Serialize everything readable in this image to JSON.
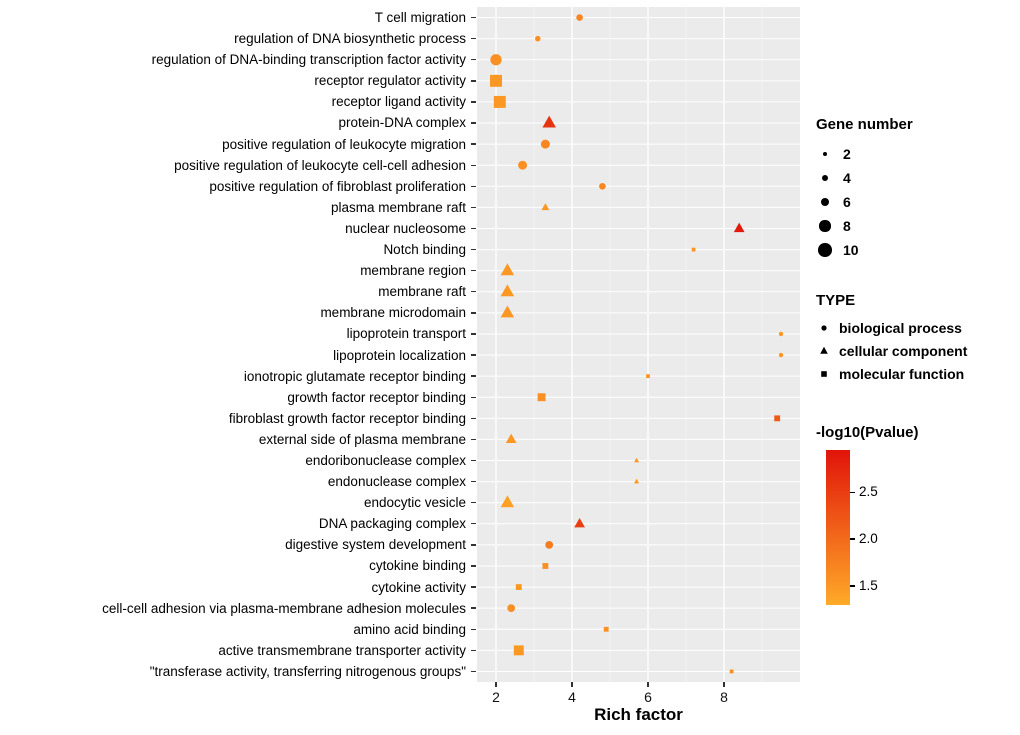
{
  "figure": {
    "x_axis_title": "Rich factor",
    "panel_background": "#EBEBEB",
    "gridline_color": "#FFFFFF",
    "legend_gene_number": {
      "title": "Gene number",
      "sizes": [
        2,
        4,
        6,
        8,
        10
      ]
    },
    "legend_type": {
      "title": "TYPE",
      "entries": [
        {
          "label": "biological process",
          "shape": "circle"
        },
        {
          "label": "cellular component",
          "shape": "triangle"
        },
        {
          "label": "molecular function",
          "shape": "square"
        }
      ]
    },
    "legend_colorbar": {
      "title": "-log10(Pvalue)",
      "ticks": [
        "2.5",
        "2.0",
        "1.5"
      ],
      "tick_values": [
        2.5,
        2.0,
        1.5
      ],
      "low_color": "#FFAA28",
      "high_color": "#E1140A",
      "domain": [
        1.3,
        2.95
      ]
    }
  },
  "chart_data": {
    "type": "scatter",
    "title": "",
    "xlabel": "Rich factor",
    "ylabel": "",
    "xlim": [
      1.5,
      10
    ],
    "x_ticks": [
      2,
      4,
      6,
      8
    ],
    "x_minor_ticks": [
      3,
      5,
      7,
      9
    ],
    "size_field": "gene_number",
    "shape_field": "type",
    "color_field": "neg_log10_pvalue",
    "points": [
      {
        "category": "T cell migration",
        "rich_factor": 4.2,
        "gene_number": 4,
        "type": "biological process",
        "neg_log10_pvalue": 1.7
      },
      {
        "category": "regulation of DNA biosynthetic process",
        "rich_factor": 3.1,
        "gene_number": 3,
        "type": "biological process",
        "neg_log10_pvalue": 1.6
      },
      {
        "category": "regulation of DNA-binding transcription factor activity",
        "rich_factor": 2.0,
        "gene_number": 8,
        "type": "biological process",
        "neg_log10_pvalue": 1.6
      },
      {
        "category": "receptor regulator activity",
        "rich_factor": 2.0,
        "gene_number": 10,
        "type": "molecular function",
        "neg_log10_pvalue": 1.5
      },
      {
        "category": "receptor ligand activity",
        "rich_factor": 2.1,
        "gene_number": 10,
        "type": "molecular function",
        "neg_log10_pvalue": 1.5
      },
      {
        "category": "protein-DNA complex",
        "rich_factor": 3.4,
        "gene_number": 8,
        "type": "cellular component",
        "neg_log10_pvalue": 2.6
      },
      {
        "category": "positive regulation of leukocyte migration",
        "rich_factor": 3.3,
        "gene_number": 6,
        "type": "biological process",
        "neg_log10_pvalue": 1.7
      },
      {
        "category": "positive regulation of leukocyte cell-cell adhesion",
        "rich_factor": 2.7,
        "gene_number": 6,
        "type": "biological process",
        "neg_log10_pvalue": 1.6
      },
      {
        "category": "positive regulation of fibroblast proliferation",
        "rich_factor": 4.8,
        "gene_number": 4,
        "type": "biological process",
        "neg_log10_pvalue": 1.7
      },
      {
        "category": "plasma membrane raft",
        "rich_factor": 3.3,
        "gene_number": 4,
        "type": "cellular component",
        "neg_log10_pvalue": 1.5
      },
      {
        "category": "nuclear nucleosome",
        "rich_factor": 8.4,
        "gene_number": 6,
        "type": "cellular component",
        "neg_log10_pvalue": 2.9
      },
      {
        "category": "Notch binding",
        "rich_factor": 7.2,
        "gene_number": 2,
        "type": "molecular function",
        "neg_log10_pvalue": 1.5
      },
      {
        "category": "membrane region",
        "rich_factor": 2.3,
        "gene_number": 8,
        "type": "cellular component",
        "neg_log10_pvalue": 1.5
      },
      {
        "category": "membrane raft",
        "rich_factor": 2.3,
        "gene_number": 8,
        "type": "cellular component",
        "neg_log10_pvalue": 1.5
      },
      {
        "category": "membrane microdomain",
        "rich_factor": 2.3,
        "gene_number": 8,
        "type": "cellular component",
        "neg_log10_pvalue": 1.5
      },
      {
        "category": "lipoprotein transport",
        "rich_factor": 9.5,
        "gene_number": 2,
        "type": "biological process",
        "neg_log10_pvalue": 1.5
      },
      {
        "category": "lipoprotein localization",
        "rich_factor": 9.5,
        "gene_number": 2,
        "type": "biological process",
        "neg_log10_pvalue": 1.5
      },
      {
        "category": "ionotropic glutamate receptor binding",
        "rich_factor": 6.0,
        "gene_number": 2,
        "type": "molecular function",
        "neg_log10_pvalue": 1.5
      },
      {
        "category": "growth factor receptor binding",
        "rich_factor": 3.2,
        "gene_number": 6,
        "type": "molecular function",
        "neg_log10_pvalue": 1.6
      },
      {
        "category": "fibroblast growth factor receptor binding",
        "rich_factor": 9.4,
        "gene_number": 4,
        "type": "molecular function",
        "neg_log10_pvalue": 2.2
      },
      {
        "category": "external side of plasma membrane",
        "rich_factor": 2.4,
        "gene_number": 6,
        "type": "cellular component",
        "neg_log10_pvalue": 1.5
      },
      {
        "category": "endoribonuclease complex",
        "rich_factor": 5.7,
        "gene_number": 2,
        "type": "cellular component",
        "neg_log10_pvalue": 1.5
      },
      {
        "category": "endonuclease complex",
        "rich_factor": 5.7,
        "gene_number": 2,
        "type": "cellular component",
        "neg_log10_pvalue": 1.5
      },
      {
        "category": "endocytic vesicle",
        "rich_factor": 2.3,
        "gene_number": 8,
        "type": "cellular component",
        "neg_log10_pvalue": 1.4
      },
      {
        "category": "DNA packaging complex",
        "rich_factor": 4.2,
        "gene_number": 6,
        "type": "cellular component",
        "neg_log10_pvalue": 2.5
      },
      {
        "category": "digestive system development",
        "rich_factor": 3.4,
        "gene_number": 5,
        "type": "biological process",
        "neg_log10_pvalue": 1.8
      },
      {
        "category": "cytokine binding",
        "rich_factor": 3.3,
        "gene_number": 4,
        "type": "molecular function",
        "neg_log10_pvalue": 1.6
      },
      {
        "category": "cytokine activity",
        "rich_factor": 2.6,
        "gene_number": 4,
        "type": "molecular function",
        "neg_log10_pvalue": 1.5
      },
      {
        "category": "cell-cell adhesion via plasma-membrane adhesion molecules",
        "rich_factor": 2.4,
        "gene_number": 5,
        "type": "biological process",
        "neg_log10_pvalue": 1.6
      },
      {
        "category": "amino acid binding",
        "rich_factor": 4.9,
        "gene_number": 3,
        "type": "molecular function",
        "neg_log10_pvalue": 1.6
      },
      {
        "category": "active transmembrane transporter activity",
        "rich_factor": 2.6,
        "gene_number": 8,
        "type": "molecular function",
        "neg_log10_pvalue": 1.5
      },
      {
        "category": "\"transferase activity, transferring nitrogenous groups\"",
        "rich_factor": 8.2,
        "gene_number": 2,
        "type": "molecular function",
        "neg_log10_pvalue": 1.6
      }
    ]
  }
}
